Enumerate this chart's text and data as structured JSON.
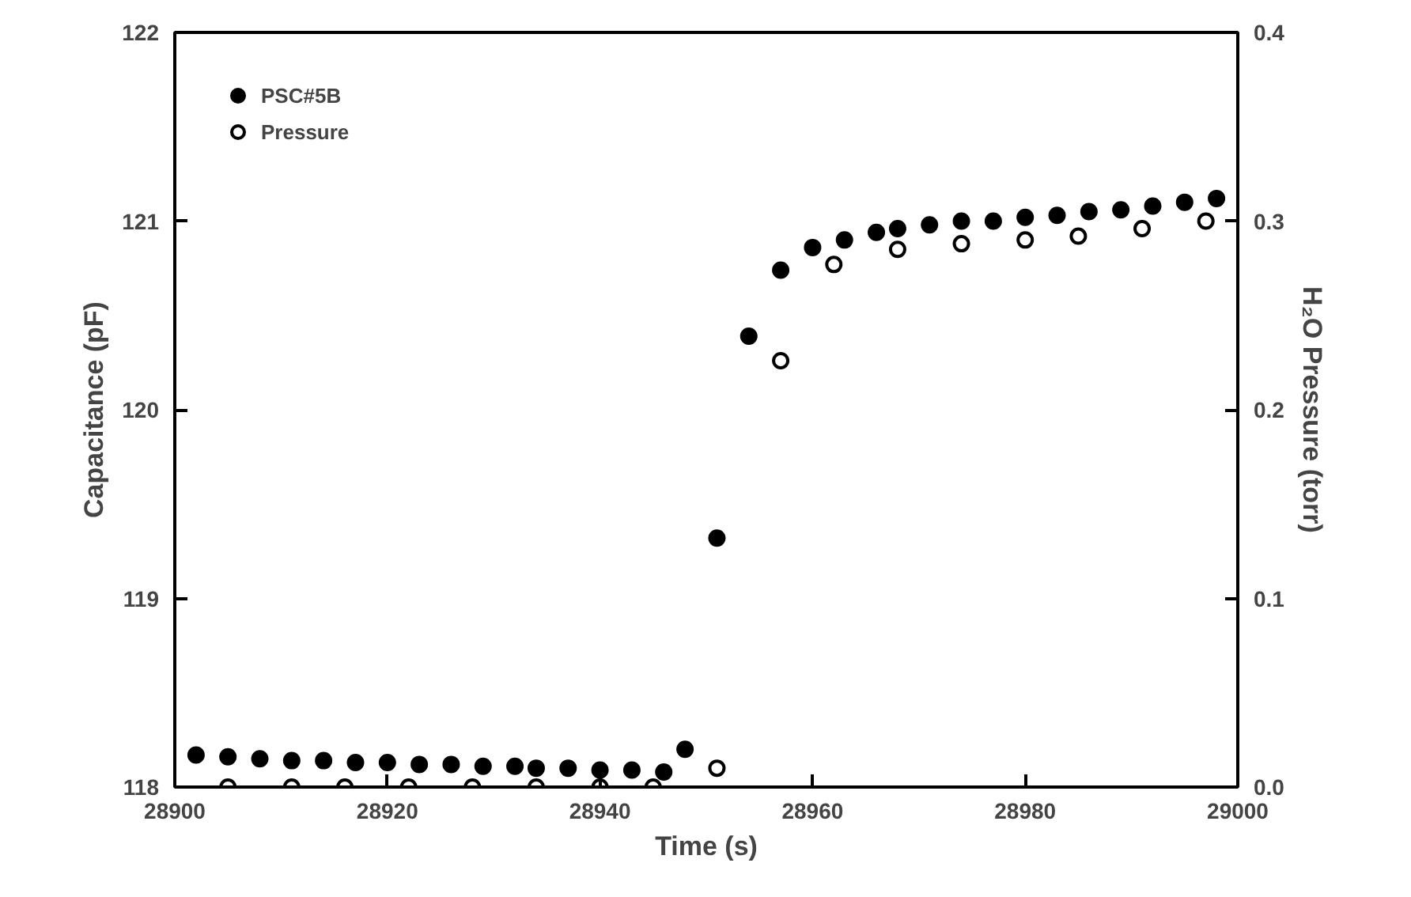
{
  "chart_data": {
    "type": "scatter",
    "xlabel": "Time (s)",
    "ylabel": "Capacitance (pF)",
    "y2label": "H₂O Pressure (torr)",
    "xlim": [
      28900,
      29000
    ],
    "xticks": [
      28900,
      28920,
      28940,
      28960,
      28980,
      29000
    ],
    "ylim": [
      118,
      122
    ],
    "yticks": [
      118,
      119,
      120,
      121,
      122
    ],
    "y2lim": [
      0,
      0.4
    ],
    "y2ticks": [
      {
        "value": 0,
        "label": "0.0"
      },
      0.1,
      0.2,
      0.3,
      0.4
    ],
    "legend": "top left",
    "grid": false,
    "series": [
      {
        "name": "PSC#5B",
        "color": "#000000",
        "marker": "circle",
        "x": [
          28902,
          28905,
          28908,
          28911,
          28914,
          28917,
          28920,
          28923,
          28926,
          28929,
          28932,
          28934,
          28937,
          28940,
          28943,
          28946,
          28948,
          28951,
          28954,
          28957,
          28960,
          28963,
          28966,
          28968,
          28971,
          28974,
          28977,
          28980,
          28983,
          28986,
          28989,
          28992,
          28995,
          28998
        ],
        "values": [
          118.17,
          118.16,
          118.15,
          118.14,
          118.14,
          118.13,
          118.13,
          118.12,
          118.12,
          118.11,
          118.11,
          118.1,
          118.1,
          118.09,
          118.09,
          118.08,
          118.2,
          119.32,
          120.39,
          120.74,
          120.86,
          120.9,
          120.94,
          120.96,
          120.98,
          121.0,
          121.0,
          121.02,
          121.03,
          121.05,
          121.06,
          121.08,
          121.1,
          121.12
        ]
      },
      {
        "name": "Pressure",
        "color": "#000000",
        "marker": "circle_open",
        "axis": "y2",
        "x": [
          28905,
          28911,
          28916,
          28922,
          28928,
          28934,
          28940,
          28945,
          28951,
          28957,
          28962,
          28968,
          28974,
          28980,
          28985,
          28991,
          28997
        ],
        "values": [
          0.0,
          0.0,
          0.0,
          0.0,
          0.0,
          0.0,
          0.0,
          0.0,
          0.01,
          0.226,
          0.277,
          0.285,
          0.288,
          0.29,
          0.292,
          0.296,
          0.3
        ]
      }
    ]
  }
}
